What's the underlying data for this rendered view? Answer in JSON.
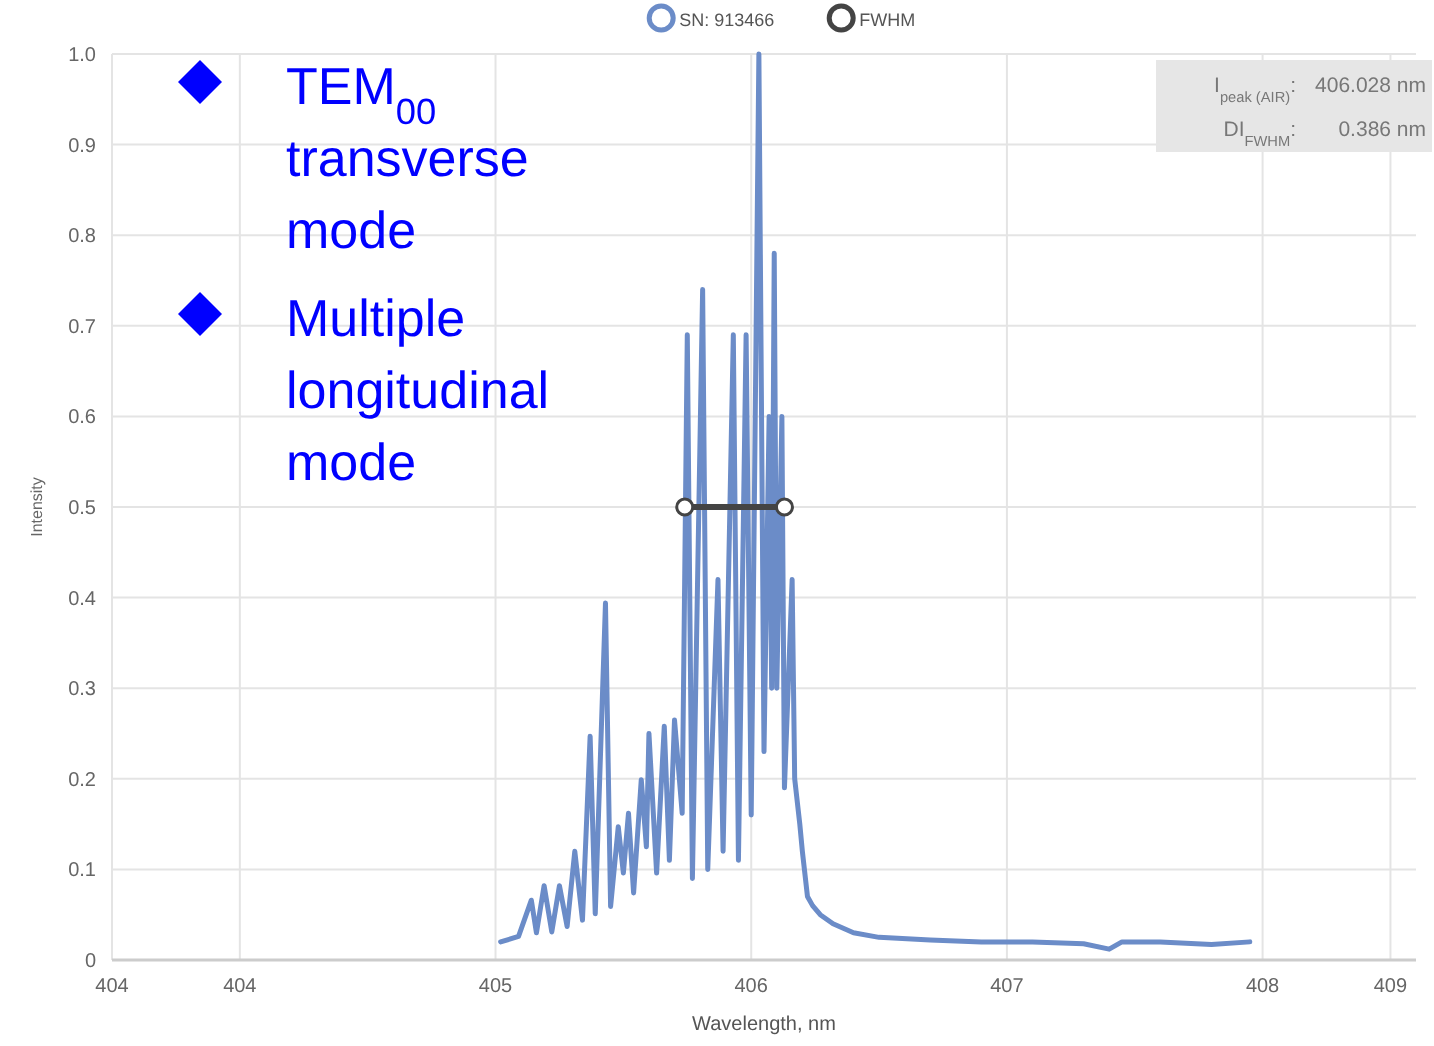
{
  "chart_data": {
    "type": "line",
    "xlabel": "Wavelength, nm",
    "ylabel": "Intensity",
    "xlim": [
      403.5,
      408.6
    ],
    "xticks": [
      {
        "value": 403.5,
        "label": "404"
      },
      404,
      405,
      406,
      407,
      408,
      {
        "value": 408.5,
        "label": "409"
      }
    ],
    "ylim": [
      0,
      1
    ],
    "yticks": [
      0,
      0.1,
      0.2,
      0.3,
      0.4,
      0.5,
      0.6,
      0.7,
      0.8,
      0.9,
      {
        "value": 1,
        "label": "1.0"
      }
    ],
    "grid": true,
    "legend": "top",
    "series": [
      {
        "name": "SN: 913466",
        "color": "#6b8cc8",
        "marker": "none",
        "x": [
          405.02,
          405.09,
          405.14,
          405.16,
          405.19,
          405.22,
          405.25,
          405.28,
          405.31,
          405.34,
          405.37,
          405.39,
          405.43,
          405.45,
          405.48,
          405.5,
          405.52,
          405.54,
          405.57,
          405.59,
          405.6,
          405.63,
          405.66,
          405.68,
          405.7,
          405.73,
          405.75,
          405.77,
          405.81,
          405.83,
          405.87,
          405.89,
          405.93,
          405.95,
          405.98,
          406.0,
          406.03,
          406.05,
          406.07,
          406.08,
          406.09,
          406.1,
          406.12,
          406.13,
          406.16,
          406.17,
          406.19,
          406.2,
          406.22,
          406.24,
          406.27,
          406.32,
          406.4,
          406.5,
          406.7,
          406.9,
          407.1,
          407.3,
          407.4,
          407.45,
          407.6,
          407.8,
          407.95
        ],
        "values": [
          0.02,
          0.026,
          0.066,
          0.03,
          0.082,
          0.031,
          0.082,
          0.037,
          0.12,
          0.044,
          0.247,
          0.051,
          0.394,
          0.059,
          0.147,
          0.096,
          0.162,
          0.074,
          0.199,
          0.125,
          0.25,
          0.096,
          0.258,
          0.11,
          0.265,
          0.162,
          0.69,
          0.09,
          0.74,
          0.1,
          0.42,
          0.12,
          0.69,
          0.11,
          0.69,
          0.16,
          1.0,
          0.23,
          0.6,
          0.3,
          0.78,
          0.3,
          0.6,
          0.19,
          0.42,
          0.2,
          0.15,
          0.12,
          0.07,
          0.06,
          0.05,
          0.04,
          0.03,
          0.025,
          0.022,
          0.02,
          0.02,
          0.018,
          0.012,
          0.02,
          0.02,
          0.017,
          0.02
        ]
      },
      {
        "name": "FWHM",
        "color": "#444444",
        "marker": "circle",
        "x": [
          405.74,
          406.13
        ],
        "values": [
          0.5,
          0.5
        ]
      }
    ],
    "annotations": [
      "TEM$_{00}$ transverse mode",
      "Multiple longitudinal mode",
      "I$_{peak (AIR)}$: 406.028 nm",
      "DI$_{FWHM}$: 0.386 nm"
    ]
  }
}
